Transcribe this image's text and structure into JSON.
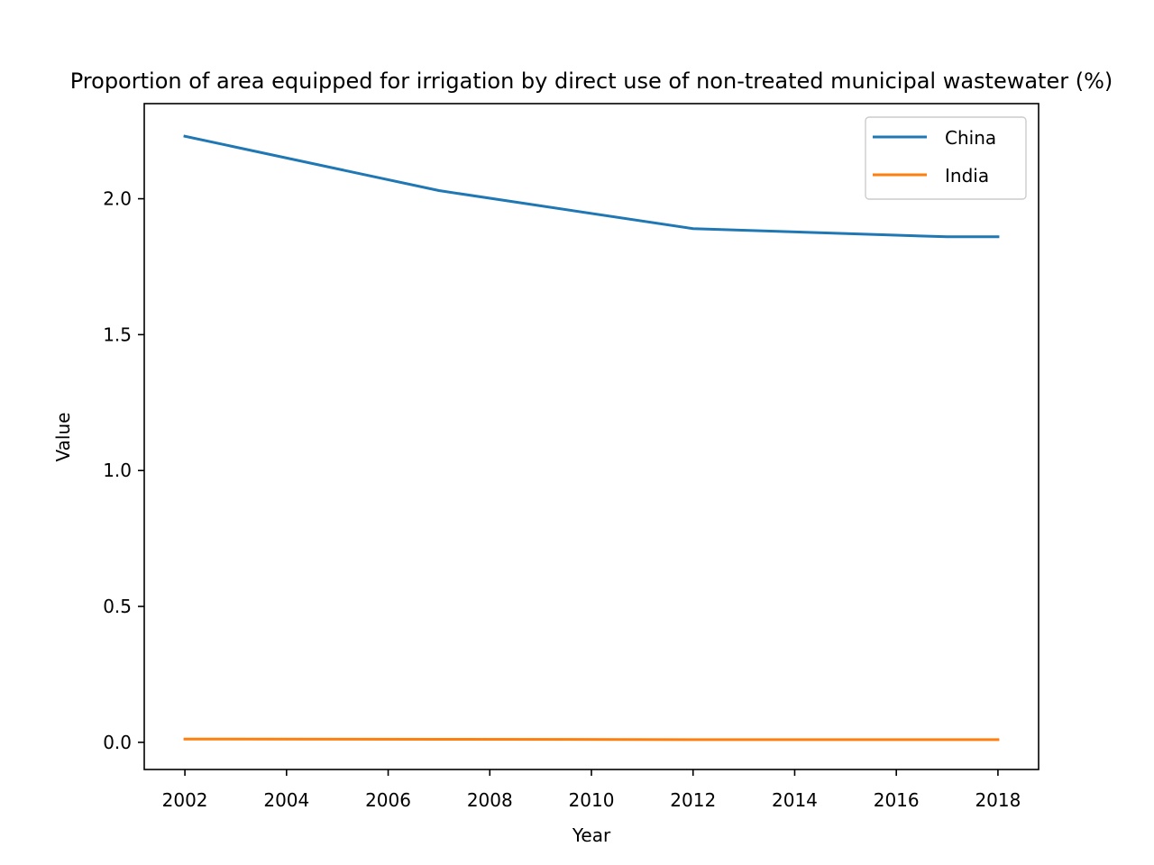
{
  "chart_data": {
    "type": "line",
    "title": "Proportion of area equipped for irrigation by direct use of non-treated municipal wastewater (%)",
    "xlabel": "Year",
    "ylabel": "Value",
    "xlim": [
      2001.2,
      2018.8
    ],
    "ylim": [
      -0.1,
      2.35
    ],
    "x_ticks": [
      2002,
      2004,
      2006,
      2008,
      2010,
      2012,
      2014,
      2016,
      2018
    ],
    "y_ticks": [
      0.0,
      0.5,
      1.0,
      1.5,
      2.0
    ],
    "y_tick_labels": [
      "0.0",
      "0.5",
      "1.0",
      "1.5",
      "2.0"
    ],
    "grid": false,
    "legend_position": "top-right",
    "x": [
      2002,
      2007,
      2012,
      2017,
      2018
    ],
    "series": [
      {
        "name": "China",
        "color": "#1f77b4",
        "values": [
          2.23,
          2.03,
          1.89,
          1.86,
          1.86
        ]
      },
      {
        "name": "India",
        "color": "#ff7f0e",
        "values": [
          0.012,
          0.011,
          0.01,
          0.01,
          0.01
        ]
      }
    ]
  }
}
